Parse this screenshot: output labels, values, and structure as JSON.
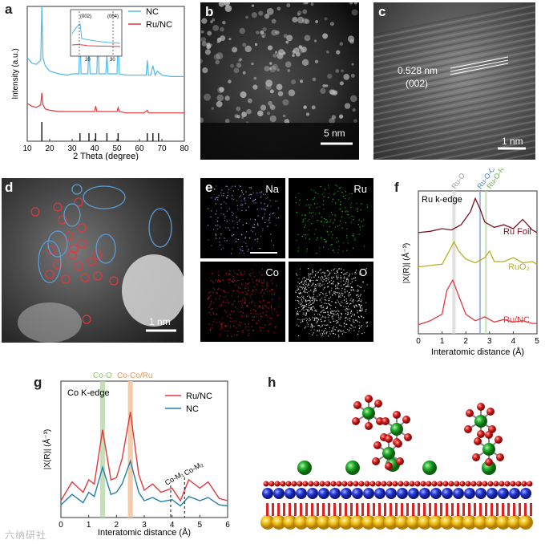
{
  "figure": {
    "panel_letters": [
      "a",
      "b",
      "c",
      "d",
      "e",
      "f",
      "g",
      "h"
    ],
    "watermark": "六纳研社"
  },
  "panel_a": {
    "legend": [
      "NC",
      "Ru/NC"
    ],
    "ylabel": "Intensity (a.u.)",
    "xlabel": "2 Theta (degree)",
    "xticks": [
      "10",
      "20",
      "30",
      "40",
      "50",
      "60",
      "70",
      "80"
    ],
    "inset_peaks": [
      "(002)",
      "(004)"
    ],
    "inset_ticks": [
      "20",
      "30"
    ]
  },
  "panel_b": {
    "scale_bar": "5 nm"
  },
  "panel_c": {
    "d_spacing": "0.528 nm",
    "plane": "(002)",
    "scale_bar": "1 nm"
  },
  "panel_d": {
    "scale_bar": "1 nm"
  },
  "panel_e": {
    "elements": [
      "Na",
      "Ru",
      "Co",
      "O"
    ]
  },
  "panel_f": {
    "edge_label": "Ru k-edge",
    "top_labels": [
      "Ru-O",
      "Ru-O-Co",
      "Ru-O-Ru"
    ],
    "series": [
      "Ru Foil",
      "RuO₂",
      "Ru/NC"
    ],
    "ylabel": "|X(R)| (Å⁻³)",
    "xlabel": "Interatomic distance (Å)",
    "xticks": [
      "0",
      "1",
      "2",
      "3",
      "4",
      "5"
    ]
  },
  "panel_g": {
    "edge_label": "Co K-edge",
    "top_labels": [
      "Co-O",
      "Co-Co/Ru"
    ],
    "legend": [
      "Ru/NC",
      "NC"
    ],
    "annotations": [
      "Co-M₁",
      "Co-M₂"
    ],
    "ylabel": "|X(R)| (Å⁻³)",
    "xlabel": "Interatomic distance (Å)",
    "xticks": [
      "0",
      "1",
      "2",
      "3",
      "4",
      "5",
      "6"
    ]
  },
  "chart_data": [
    {
      "type": "line",
      "xlabel": "2 Theta (degree)",
      "ylabel": "Intensity (a.u.)",
      "xlim": [
        10,
        80
      ],
      "series": [
        {
          "name": "NC",
          "color": "#4fb8e8",
          "x": [
            10,
            12,
            14,
            16,
            16.5,
            17,
            18,
            20,
            24,
            28,
            30,
            32,
            33,
            33.5,
            34,
            36,
            37,
            37.5,
            38,
            40,
            41,
            41.5,
            42,
            44,
            45,
            45.5,
            46,
            48,
            50,
            50.5,
            51,
            54,
            58,
            62,
            63,
            63.5,
            64,
            65,
            66,
            67,
            68,
            70,
            74,
            80
          ],
          "y": [
            0.62,
            0.58,
            0.57,
            0.6,
            1.0,
            0.62,
            0.56,
            0.52,
            0.5,
            0.49,
            0.5,
            0.5,
            0.5,
            0.8,
            0.5,
            0.5,
            0.5,
            0.7,
            0.5,
            0.5,
            0.5,
            0.78,
            0.5,
            0.5,
            0.5,
            0.64,
            0.5,
            0.5,
            0.5,
            0.78,
            0.5,
            0.49,
            0.49,
            0.49,
            0.49,
            0.6,
            0.49,
            0.49,
            0.56,
            0.49,
            0.52,
            0.49,
            0.48,
            0.48
          ]
        },
        {
          "name": "Ru/NC",
          "color": "#e0393e",
          "x": [
            10,
            12,
            14,
            16,
            16.5,
            17,
            18,
            20,
            24,
            28,
            30,
            32,
            34,
            38,
            40,
            40.5,
            41,
            44,
            48,
            50,
            50.5,
            51,
            54,
            58,
            62,
            63.5,
            64,
            66,
            70,
            74,
            80
          ],
          "y": [
            0.28,
            0.26,
            0.25,
            0.27,
            0.36,
            0.27,
            0.24,
            0.23,
            0.22,
            0.22,
            0.22,
            0.22,
            0.22,
            0.22,
            0.22,
            0.26,
            0.22,
            0.22,
            0.22,
            0.22,
            0.25,
            0.22,
            0.21,
            0.21,
            0.21,
            0.23,
            0.21,
            0.21,
            0.21,
            0.21,
            0.21
          ]
        }
      ],
      "reference_peaks": [
        16.5,
        33.5,
        37.5,
        40.5,
        45.5,
        50.5,
        63.5,
        66,
        68.5
      ]
    },
    {
      "type": "line",
      "xlabel": "Interatomic distance (Å)",
      "ylabel": "|X(R)| (Å⁻³)",
      "xlim": [
        0,
        5
      ],
      "series": [
        {
          "name": "Ru Foil",
          "color": "#7a1020",
          "x": [
            0,
            0.5,
            1,
            1.4,
            1.8,
            2.2,
            2.4,
            2.6,
            2.8,
            3.2,
            3.6,
            4.0,
            4.4,
            4.8,
            5
          ],
          "y": [
            0.72,
            0.73,
            0.75,
            0.74,
            0.78,
            0.88,
            0.98,
            0.9,
            0.8,
            0.76,
            0.78,
            0.75,
            0.82,
            0.74,
            0.72
          ]
        },
        {
          "name": "RuO₂",
          "color": "#b5b11f",
          "x": [
            0,
            0.5,
            1,
            1.3,
            1.5,
            1.7,
            2.0,
            2.4,
            2.8,
            3.0,
            3.2,
            3.6,
            4.0,
            4.4,
            4.8,
            5
          ],
          "y": [
            0.46,
            0.47,
            0.48,
            0.58,
            0.65,
            0.58,
            0.52,
            0.49,
            0.53,
            0.58,
            0.5,
            0.5,
            0.53,
            0.49,
            0.5,
            0.48
          ]
        },
        {
          "name": "Ru/NC",
          "color": "#e0393e",
          "x": [
            0,
            0.5,
            1,
            1.2,
            1.45,
            1.7,
            2.0,
            2.4,
            2.8,
            3.2,
            3.6,
            4.0,
            4.4,
            4.8,
            5
          ],
          "y": [
            0.02,
            0.05,
            0.1,
            0.28,
            0.36,
            0.24,
            0.1,
            0.05,
            0.08,
            0.04,
            0.06,
            0.04,
            0.05,
            0.03,
            0.03
          ]
        }
      ]
    },
    {
      "type": "line",
      "xlabel": "Interatomic distance (Å)",
      "ylabel": "|X(R)| (Å⁻³)",
      "xlim": [
        0,
        6
      ],
      "series": [
        {
          "name": "Ru/NC",
          "color": "#e0393e",
          "x": [
            0,
            0.4,
            0.8,
            1.0,
            1.2,
            1.5,
            1.8,
            2.0,
            2.2,
            2.5,
            2.8,
            3.0,
            3.3,
            3.6,
            4.0,
            4.3,
            4.6,
            5.0,
            5.3,
            5.7,
            6
          ],
          "y": [
            0.1,
            0.28,
            0.18,
            0.3,
            0.26,
            0.78,
            0.3,
            0.32,
            0.5,
            0.95,
            0.35,
            0.2,
            0.26,
            0.18,
            0.22,
            0.1,
            0.3,
            0.22,
            0.28,
            0.12,
            0.1
          ]
        },
        {
          "name": "NC",
          "color": "#1f7fae",
          "x": [
            0,
            0.4,
            0.8,
            1.0,
            1.2,
            1.5,
            1.8,
            2.0,
            2.2,
            2.5,
            2.8,
            3.0,
            3.3,
            3.6,
            4.0,
            4.3,
            4.6,
            5.0,
            5.3,
            5.7,
            6
          ],
          "y": [
            0.06,
            0.16,
            0.08,
            0.18,
            0.14,
            0.42,
            0.16,
            0.18,
            0.26,
            0.48,
            0.18,
            0.1,
            0.13,
            0.09,
            0.11,
            0.05,
            0.14,
            0.1,
            0.13,
            0.06,
            0.05
          ]
        }
      ]
    }
  ]
}
